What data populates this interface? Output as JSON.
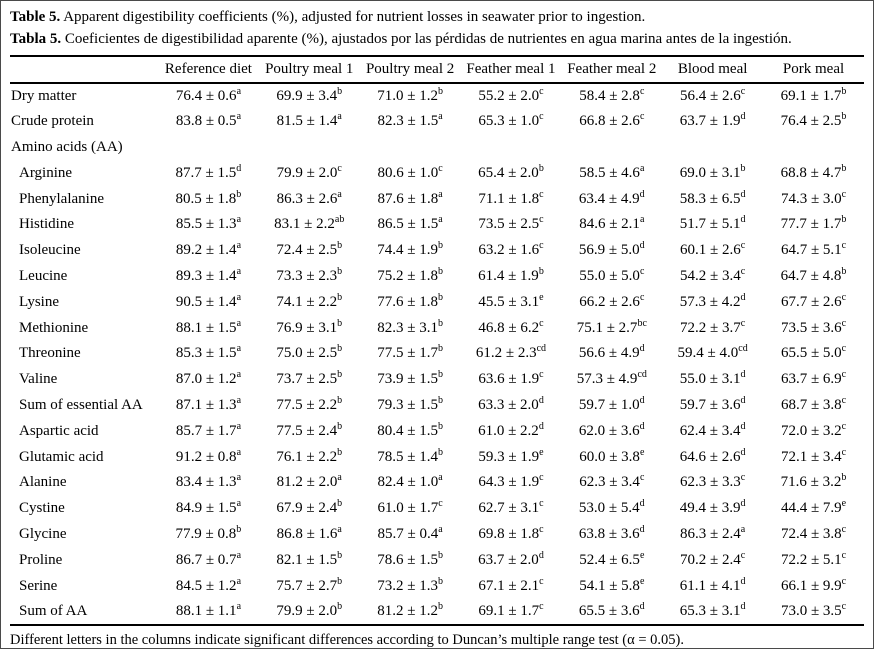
{
  "captions": {
    "en_label": "Table 5.",
    "en_text": " Apparent digestibility coefficients (%), adjusted for nutrient losses in seawater prior to ingestion.",
    "es_label": "Tabla 5.",
    "es_text": " Coeficientes de digestibilidad aparente (%), ajustados por las pérdidas de nutrientes en agua marina antes de la ingestión."
  },
  "table": {
    "columns": [
      "",
      "Reference diet",
      "Poultry meal 1",
      "Poultry meal 2",
      "Feather meal 1",
      "Feather meal 2",
      "Blood meal",
      "Pork meal"
    ],
    "rows": [
      {
        "label": "Dry matter",
        "indent": false,
        "cells": [
          {
            "v": "76.4 ± 0.6",
            "s": "a"
          },
          {
            "v": "69.9 ± 3.4",
            "s": "b"
          },
          {
            "v": "71.0 ± 1.2",
            "s": "b"
          },
          {
            "v": "55.2 ± 2.0",
            "s": "c"
          },
          {
            "v": "58.4 ± 2.8",
            "s": "c"
          },
          {
            "v": "56.4 ± 2.6",
            "s": "c"
          },
          {
            "v": "69.1 ± 1.7",
            "s": "b"
          }
        ]
      },
      {
        "label": "Crude protein",
        "indent": false,
        "cells": [
          {
            "v": "83.8 ± 0.5",
            "s": "a"
          },
          {
            "v": "81.5 ± 1.4",
            "s": "a"
          },
          {
            "v": "82.3 ± 1.5",
            "s": "a"
          },
          {
            "v": "65.3 ± 1.0",
            "s": "c"
          },
          {
            "v": "66.8 ± 2.6",
            "s": "c"
          },
          {
            "v": "63.7 ± 1.9",
            "s": "d"
          },
          {
            "v": "76.4 ± 2.5",
            "s": "b"
          }
        ]
      },
      {
        "label": "Amino acids (AA)",
        "indent": false,
        "cells": [
          {
            "v": "",
            "s": ""
          },
          {
            "v": "",
            "s": ""
          },
          {
            "v": "",
            "s": ""
          },
          {
            "v": "",
            "s": ""
          },
          {
            "v": "",
            "s": ""
          },
          {
            "v": "",
            "s": ""
          },
          {
            "v": "",
            "s": ""
          }
        ]
      },
      {
        "label": "Arginine",
        "indent": true,
        "cells": [
          {
            "v": "87.7 ± 1.5",
            "s": "d"
          },
          {
            "v": "79.9 ± 2.0",
            "s": "c"
          },
          {
            "v": "80.6 ± 1.0",
            "s": "c"
          },
          {
            "v": "65.4 ± 2.0",
            "s": "b"
          },
          {
            "v": "58.5 ± 4.6",
            "s": "a"
          },
          {
            "v": "69.0 ± 3.1",
            "s": "b"
          },
          {
            "v": "68.8 ± 4.7",
            "s": "b"
          }
        ]
      },
      {
        "label": "Phenylalanine",
        "indent": true,
        "cells": [
          {
            "v": "80.5 ± 1.8",
            "s": "b"
          },
          {
            "v": "86.3 ± 2.6",
            "s": "a"
          },
          {
            "v": "87.6 ± 1.8",
            "s": "a"
          },
          {
            "v": "71.1 ± 1.8",
            "s": "c"
          },
          {
            "v": "63.4 ± 4.9",
            "s": "d"
          },
          {
            "v": "58.3 ± 6.5",
            "s": "d"
          },
          {
            "v": "74.3 ± 3.0",
            "s": "c"
          }
        ]
      },
      {
        "label": "Histidine",
        "indent": true,
        "cells": [
          {
            "v": "85.5 ± 1.3",
            "s": "a"
          },
          {
            "v": "83.1 ± 2.2",
            "s": "ab"
          },
          {
            "v": "86.5 ± 1.5",
            "s": "a"
          },
          {
            "v": "73.5 ± 2.5",
            "s": "c"
          },
          {
            "v": "84.6 ± 2.1",
            "s": "a"
          },
          {
            "v": "51.7 ± 5.1",
            "s": "d"
          },
          {
            "v": "77.7 ± 1.7",
            "s": "b"
          }
        ]
      },
      {
        "label": "Isoleucine",
        "indent": true,
        "cells": [
          {
            "v": "89.2 ± 1.4",
            "s": "a"
          },
          {
            "v": "72.4 ± 2.5",
            "s": "b"
          },
          {
            "v": "74.4 ± 1.9",
            "s": "b"
          },
          {
            "v": "63.2 ± 1.6",
            "s": "c"
          },
          {
            "v": "56.9 ± 5.0",
            "s": "d"
          },
          {
            "v": "60.1 ± 2.6",
            "s": "c"
          },
          {
            "v": "64.7 ± 5.1",
            "s": "c"
          }
        ]
      },
      {
        "label": "Leucine",
        "indent": true,
        "cells": [
          {
            "v": "89.3 ± 1.4",
            "s": "a"
          },
          {
            "v": "73.3 ± 2.3",
            "s": "b"
          },
          {
            "v": "75.2 ± 1.8",
            "s": "b"
          },
          {
            "v": "61.4 ± 1.9",
            "s": "b"
          },
          {
            "v": "55.0 ± 5.0",
            "s": "c"
          },
          {
            "v": "54.2 ± 3.4",
            "s": "c"
          },
          {
            "v": "64.7 ± 4.8",
            "s": "b"
          }
        ]
      },
      {
        "label": "Lysine",
        "indent": true,
        "cells": [
          {
            "v": "90.5 ± 1.4",
            "s": "a"
          },
          {
            "v": "74.1 ± 2.2",
            "s": "b"
          },
          {
            "v": "77.6 ± 1.8",
            "s": "b"
          },
          {
            "v": "45.5 ± 3.1",
            "s": "e"
          },
          {
            "v": "66.2 ± 2.6",
            "s": "c"
          },
          {
            "v": "57.3 ± 4.2",
            "s": "d"
          },
          {
            "v": "67.7 ± 2.6",
            "s": "c"
          }
        ]
      },
      {
        "label": "Methionine",
        "indent": true,
        "cells": [
          {
            "v": "88.1 ± 1.5",
            "s": "a"
          },
          {
            "v": "76.9 ± 3.1",
            "s": "b"
          },
          {
            "v": "82.3 ± 3.1",
            "s": "b"
          },
          {
            "v": "46.8 ± 6.2",
            "s": "c"
          },
          {
            "v": "75.1 ± 2.7",
            "s": "bc"
          },
          {
            "v": "72.2 ± 3.7",
            "s": "c"
          },
          {
            "v": "73.5 ± 3.6",
            "s": "c"
          }
        ]
      },
      {
        "label": "Threonine",
        "indent": true,
        "cells": [
          {
            "v": "85.3 ± 1.5",
            "s": "a"
          },
          {
            "v": "75.0 ± 2.5",
            "s": "b"
          },
          {
            "v": "77.5 ± 1.7",
            "s": "b"
          },
          {
            "v": "61.2 ± 2.3",
            "s": "cd"
          },
          {
            "v": "56.6 ± 4.9",
            "s": "d"
          },
          {
            "v": "59.4 ± 4.0",
            "s": "cd"
          },
          {
            "v": "65.5 ± 5.0",
            "s": "c"
          }
        ]
      },
      {
        "label": "Valine",
        "indent": true,
        "cells": [
          {
            "v": "87.0 ± 1.2",
            "s": "a"
          },
          {
            "v": "73.7 ± 2.5",
            "s": "b"
          },
          {
            "v": "73.9 ± 1.5",
            "s": "b"
          },
          {
            "v": "63.6 ± 1.9",
            "s": "c"
          },
          {
            "v": "57.3 ± 4.9",
            "s": "cd"
          },
          {
            "v": "55.0 ± 3.1",
            "s": "d"
          },
          {
            "v": "63.7 ± 6.9",
            "s": "c"
          }
        ]
      },
      {
        "label": "Sum of essential AA",
        "indent": true,
        "cells": [
          {
            "v": "87.1 ± 1.3",
            "s": "a"
          },
          {
            "v": "77.5 ± 2.2",
            "s": "b"
          },
          {
            "v": "79.3 ± 1.5",
            "s": "b"
          },
          {
            "v": "63.3 ± 2.0",
            "s": "d"
          },
          {
            "v": "59.7 ± 1.0",
            "s": "d"
          },
          {
            "v": "59.7 ± 3.6",
            "s": "d"
          },
          {
            "v": "68.7 ± 3.8",
            "s": "c"
          }
        ]
      },
      {
        "label": "Aspartic acid",
        "indent": true,
        "cells": [
          {
            "v": "85.7 ± 1.7",
            "s": "a"
          },
          {
            "v": "77.5 ± 2.4",
            "s": "b"
          },
          {
            "v": "80.4 ± 1.5",
            "s": "b"
          },
          {
            "v": "61.0 ± 2.2",
            "s": "d"
          },
          {
            "v": "62.0 ± 3.6",
            "s": "d"
          },
          {
            "v": "62.4 ± 3.4",
            "s": "d"
          },
          {
            "v": "72.0 ± 3.2",
            "s": "c"
          }
        ]
      },
      {
        "label": "Glutamic acid",
        "indent": true,
        "cells": [
          {
            "v": "91.2 ± 0.8",
            "s": "a"
          },
          {
            "v": "76.1 ± 2.2",
            "s": "b"
          },
          {
            "v": "78.5 ± 1.4",
            "s": "b"
          },
          {
            "v": "59.3 ± 1.9",
            "s": "e"
          },
          {
            "v": "60.0 ± 3.8",
            "s": "e"
          },
          {
            "v": "64.6 ± 2.6",
            "s": "d"
          },
          {
            "v": "72.1 ± 3.4",
            "s": "c"
          }
        ]
      },
      {
        "label": "Alanine",
        "indent": true,
        "cells": [
          {
            "v": "83.4 ± 1.3",
            "s": "a"
          },
          {
            "v": "81.2 ± 2.0",
            "s": "a"
          },
          {
            "v": "82.4 ± 1.0",
            "s": "a"
          },
          {
            "v": "64.3 ± 1.9",
            "s": "c"
          },
          {
            "v": "62.3 ± 3.4",
            "s": "c"
          },
          {
            "v": "62.3 ± 3.3",
            "s": "c"
          },
          {
            "v": "71.6 ± 3.2",
            "s": "b"
          }
        ]
      },
      {
        "label": "Cystine",
        "indent": true,
        "cells": [
          {
            "v": "84.9 ± 1.5",
            "s": "a"
          },
          {
            "v": "67.9 ± 2.4",
            "s": "b"
          },
          {
            "v": "61.0 ± 1.7",
            "s": "c"
          },
          {
            "v": "62.7 ± 3.1",
            "s": "c"
          },
          {
            "v": "53.0 ± 5.4",
            "s": "d"
          },
          {
            "v": "49.4 ± 3.9",
            "s": "d"
          },
          {
            "v": "44.4 ± 7.9",
            "s": "e"
          }
        ]
      },
      {
        "label": "Glycine",
        "indent": true,
        "cells": [
          {
            "v": "77.9 ± 0.8",
            "s": "b"
          },
          {
            "v": "86.8 ± 1.6",
            "s": "a"
          },
          {
            "v": "85.7 ± 0.4",
            "s": "a"
          },
          {
            "v": "69.8 ± 1.8",
            "s": "c"
          },
          {
            "v": "63.8 ± 3.6",
            "s": "d"
          },
          {
            "v": "86.3 ± 2.4",
            "s": "a"
          },
          {
            "v": "72.4 ± 3.8",
            "s": "c"
          }
        ]
      },
      {
        "label": "Proline",
        "indent": true,
        "cells": [
          {
            "v": "86.7 ± 0.7",
            "s": "a"
          },
          {
            "v": "82.1 ± 1.5",
            "s": "b"
          },
          {
            "v": "78.6 ± 1.5",
            "s": "b"
          },
          {
            "v": "63.7 ± 2.0",
            "s": "d"
          },
          {
            "v": "52.4 ± 6.5",
            "s": "e"
          },
          {
            "v": "70.2 ± 2.4",
            "s": "c"
          },
          {
            "v": "72.2 ± 5.1",
            "s": "c"
          }
        ]
      },
      {
        "label": "Serine",
        "indent": true,
        "cells": [
          {
            "v": "84.5 ± 1.2",
            "s": "a"
          },
          {
            "v": "75.7 ± 2.7",
            "s": "b"
          },
          {
            "v": "73.2 ± 1.3",
            "s": "b"
          },
          {
            "v": "67.1 ± 2.1",
            "s": "c"
          },
          {
            "v": "54.1 ± 5.8",
            "s": "e"
          },
          {
            "v": "61.1 ± 4.1",
            "s": "d"
          },
          {
            "v": "66.1 ± 9.9",
            "s": "c"
          }
        ]
      },
      {
        "label": "Sum of AA",
        "indent": true,
        "cells": [
          {
            "v": "88.1 ± 1.1",
            "s": "a"
          },
          {
            "v": "79.9 ± 2.0",
            "s": "b"
          },
          {
            "v": "81.2 ± 1.2",
            "s": "b"
          },
          {
            "v": "69.1 ± 1.7",
            "s": "c"
          },
          {
            "v": "65.5 ± 3.6",
            "s": "d"
          },
          {
            "v": "65.3 ± 3.1",
            "s": "d"
          },
          {
            "v": "73.0 ± 3.5",
            "s": "c"
          }
        ]
      }
    ]
  },
  "footnote": "Different letters in the columns indicate significant differences according to Duncan’s multiple range test (α = 0.05)."
}
